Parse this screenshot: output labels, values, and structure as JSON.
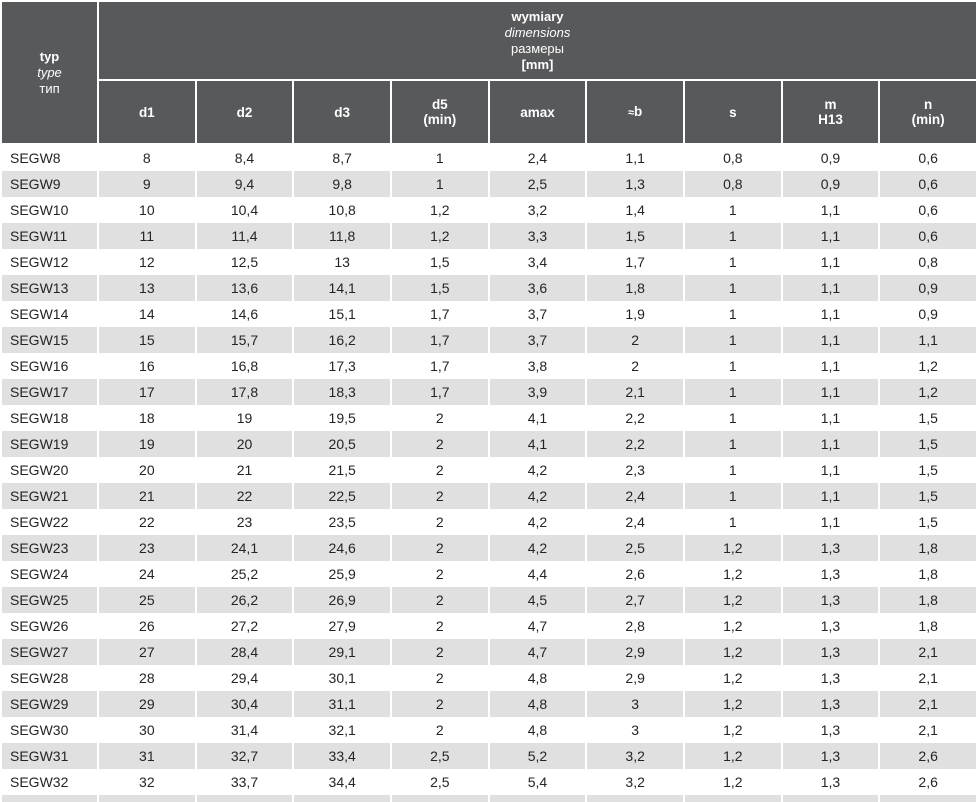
{
  "colors": {
    "header_bg": "#58595b",
    "header_text": "#ffffff",
    "row_alt_bg": "#e0e0e1",
    "text": "#242424",
    "page_bg": "#ffffff"
  },
  "header": {
    "type_column": {
      "line1": "typ",
      "line2": "type",
      "line3": "тип"
    },
    "group": {
      "line1": "wymiary",
      "line2": "dimensions",
      "line3": "размеры",
      "line4": "[mm]"
    },
    "columns": [
      {
        "line1": "d1",
        "line2": ""
      },
      {
        "line1": "d2",
        "line2": ""
      },
      {
        "line1": "d3",
        "line2": ""
      },
      {
        "line1": "d5",
        "line2": "(min)"
      },
      {
        "line1": "amax",
        "line2": ""
      },
      {
        "line1": "≈b",
        "line2": ""
      },
      {
        "line1": "s",
        "line2": ""
      },
      {
        "line1": "m",
        "line2": "H13"
      },
      {
        "line1": "n",
        "line2": "(min)"
      }
    ]
  },
  "chart_data": {
    "type": "table",
    "title": "wymiary / dimensions / размеры [mm]",
    "columns": [
      "typ / type / тип",
      "d1",
      "d2",
      "d3",
      "d5 (min)",
      "amax",
      "≈b",
      "s",
      "m H13",
      "n (min)"
    ],
    "rows": [
      {
        "typ": "SEGW8",
        "values": [
          "8",
          "8,4",
          "8,7",
          "1",
          "2,4",
          "1,1",
          "0,8",
          "0,9",
          "0,6"
        ]
      },
      {
        "typ": "SEGW9",
        "values": [
          "9",
          "9,4",
          "9,8",
          "1",
          "2,5",
          "1,3",
          "0,8",
          "0,9",
          "0,6"
        ]
      },
      {
        "typ": "SEGW10",
        "values": [
          "10",
          "10,4",
          "10,8",
          "1,2",
          "3,2",
          "1,4",
          "1",
          "1,1",
          "0,6"
        ]
      },
      {
        "typ": "SEGW11",
        "values": [
          "11",
          "11,4",
          "11,8",
          "1,2",
          "3,3",
          "1,5",
          "1",
          "1,1",
          "0,6"
        ]
      },
      {
        "typ": "SEGW12",
        "values": [
          "12",
          "12,5",
          "13",
          "1,5",
          "3,4",
          "1,7",
          "1",
          "1,1",
          "0,8"
        ]
      },
      {
        "typ": "SEGW13",
        "values": [
          "13",
          "13,6",
          "14,1",
          "1,5",
          "3,6",
          "1,8",
          "1",
          "1,1",
          "0,9"
        ]
      },
      {
        "typ": "SEGW14",
        "values": [
          "14",
          "14,6",
          "15,1",
          "1,7",
          "3,7",
          "1,9",
          "1",
          "1,1",
          "0,9"
        ]
      },
      {
        "typ": "SEGW15",
        "values": [
          "15",
          "15,7",
          "16,2",
          "1,7",
          "3,7",
          "2",
          "1",
          "1,1",
          "1,1"
        ]
      },
      {
        "typ": "SEGW16",
        "values": [
          "16",
          "16,8",
          "17,3",
          "1,7",
          "3,8",
          "2",
          "1",
          "1,1",
          "1,2"
        ]
      },
      {
        "typ": "SEGW17",
        "values": [
          "17",
          "17,8",
          "18,3",
          "1,7",
          "3,9",
          "2,1",
          "1",
          "1,1",
          "1,2"
        ]
      },
      {
        "typ": "SEGW18",
        "values": [
          "18",
          "19",
          "19,5",
          "2",
          "4,1",
          "2,2",
          "1",
          "1,1",
          "1,5"
        ]
      },
      {
        "typ": "SEGW19",
        "values": [
          "19",
          "20",
          "20,5",
          "2",
          "4,1",
          "2,2",
          "1",
          "1,1",
          "1,5"
        ]
      },
      {
        "typ": "SEGW20",
        "values": [
          "20",
          "21",
          "21,5",
          "2",
          "4,2",
          "2,3",
          "1",
          "1,1",
          "1,5"
        ]
      },
      {
        "typ": "SEGW21",
        "values": [
          "21",
          "22",
          "22,5",
          "2",
          "4,2",
          "2,4",
          "1",
          "1,1",
          "1,5"
        ]
      },
      {
        "typ": "SEGW22",
        "values": [
          "22",
          "23",
          "23,5",
          "2",
          "4,2",
          "2,4",
          "1",
          "1,1",
          "1,5"
        ]
      },
      {
        "typ": "SEGW23",
        "values": [
          "23",
          "24,1",
          "24,6",
          "2",
          "4,2",
          "2,5",
          "1,2",
          "1,3",
          "1,8"
        ]
      },
      {
        "typ": "SEGW24",
        "values": [
          "24",
          "25,2",
          "25,9",
          "2",
          "4,4",
          "2,6",
          "1,2",
          "1,3",
          "1,8"
        ]
      },
      {
        "typ": "SEGW25",
        "values": [
          "25",
          "26,2",
          "26,9",
          "2",
          "4,5",
          "2,7",
          "1,2",
          "1,3",
          "1,8"
        ]
      },
      {
        "typ": "SEGW26",
        "values": [
          "26",
          "27,2",
          "27,9",
          "2",
          "4,7",
          "2,8",
          "1,2",
          "1,3",
          "1,8"
        ]
      },
      {
        "typ": "SEGW27",
        "values": [
          "27",
          "28,4",
          "29,1",
          "2",
          "4,7",
          "2,9",
          "1,2",
          "1,3",
          "2,1"
        ]
      },
      {
        "typ": "SEGW28",
        "values": [
          "28",
          "29,4",
          "30,1",
          "2",
          "4,8",
          "2,9",
          "1,2",
          "1,3",
          "2,1"
        ]
      },
      {
        "typ": "SEGW29",
        "values": [
          "29",
          "30,4",
          "31,1",
          "2",
          "4,8",
          "3",
          "1,2",
          "1,3",
          "2,1"
        ]
      },
      {
        "typ": "SEGW30",
        "values": [
          "30",
          "31,4",
          "32,1",
          "2",
          "4,8",
          "3",
          "1,2",
          "1,3",
          "2,1"
        ]
      },
      {
        "typ": "SEGW31",
        "values": [
          "31",
          "32,7",
          "33,4",
          "2,5",
          "5,2",
          "3,2",
          "1,2",
          "1,3",
          "2,6"
        ]
      },
      {
        "typ": "SEGW32",
        "values": [
          "32",
          "33,7",
          "34,4",
          "2,5",
          "5,4",
          "3,2",
          "1,2",
          "1,3",
          "2,6"
        ]
      }
    ]
  }
}
